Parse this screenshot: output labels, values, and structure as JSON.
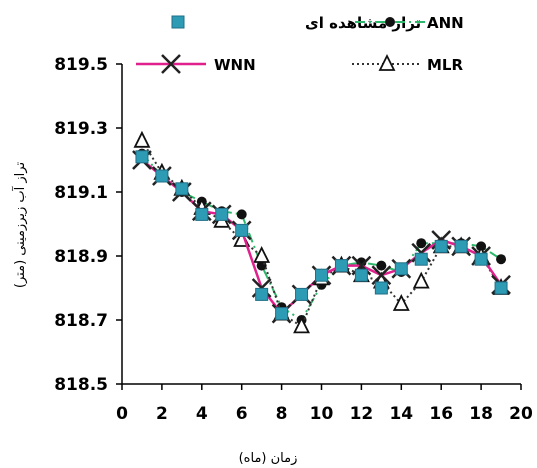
{
  "chart_data": {
    "type": "line",
    "xlabel": "زمان (ماه)",
    "ylabel": "تراز آب زیرزمینی (متر)",
    "xlim": [
      0,
      20
    ],
    "ylim": [
      818.5,
      819.5
    ],
    "x_ticks": [
      "0",
      "2",
      "4",
      "6",
      "8",
      "10",
      "12",
      "14",
      "16",
      "18",
      "20"
    ],
    "y_ticks": [
      "818.5",
      "818.7",
      "818.9",
      "819.1",
      "819.3",
      "819.5"
    ],
    "legend_position": "top",
    "grid": false,
    "x": [
      1,
      2,
      3,
      4,
      5,
      6,
      7,
      8,
      9,
      10,
      11,
      12,
      13,
      14,
      15,
      16,
      17,
      18,
      19
    ],
    "series": [
      {
        "name": "تراز مشاهده ای",
        "style": "markers",
        "marker": "square",
        "color": "#2e9bb5",
        "values": [
          819.21,
          819.15,
          819.11,
          819.03,
          819.03,
          818.98,
          818.78,
          818.72,
          818.78,
          818.84,
          818.87,
          818.84,
          818.8,
          818.86,
          818.89,
          818.93,
          818.93,
          818.89,
          818.8
        ]
      },
      {
        "name": "ANN",
        "style": "dash-dot",
        "marker": "circle",
        "color": "#2eb86b",
        "values": [
          819.22,
          819.15,
          819.1,
          819.07,
          819.04,
          819.03,
          818.87,
          818.74,
          818.7,
          818.81,
          818.87,
          818.88,
          818.87,
          818.85,
          818.94,
          818.94,
          818.94,
          818.93,
          818.89
        ]
      },
      {
        "name": "WNN",
        "style": "solid",
        "marker": "x",
        "color": "#e0208c",
        "values": [
          819.2,
          819.15,
          819.1,
          819.04,
          819.03,
          818.98,
          818.8,
          818.72,
          818.78,
          818.84,
          818.87,
          818.87,
          818.84,
          818.86,
          818.91,
          818.95,
          818.93,
          818.9,
          818.81
        ]
      },
      {
        "name": "MLR",
        "style": "dotted",
        "marker": "triangle",
        "color": "#333333",
        "values": [
          819.26,
          819.16,
          819.11,
          819.05,
          819.01,
          818.95,
          818.9,
          818.72,
          818.68,
          818.83,
          818.87,
          818.84,
          818.82,
          818.75,
          818.82,
          818.93,
          818.93,
          818.9,
          818.8
        ]
      }
    ]
  }
}
